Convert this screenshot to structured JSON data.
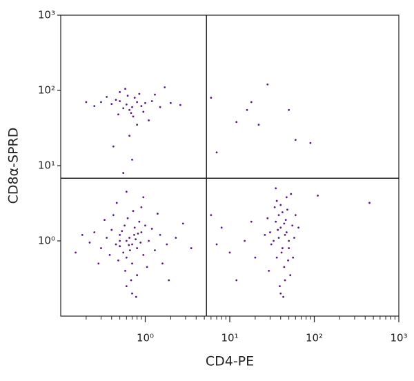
{
  "chart_data": {
    "type": "scatter",
    "xlabel": "CD4-PE",
    "ylabel": "CD8α-SPRD",
    "xscale": "log",
    "yscale": "log",
    "xlim": [
      0.1,
      1000
    ],
    "ylim": [
      0.1,
      1000
    ],
    "xticks": [
      {
        "value": 1,
        "label": "10⁰"
      },
      {
        "value": 10,
        "label": "10¹"
      },
      {
        "value": 100,
        "label": "10²"
      },
      {
        "value": 1000,
        "label": "10³"
      }
    ],
    "yticks": [
      {
        "value": 1,
        "label": "10⁰"
      },
      {
        "value": 10,
        "label": "10¹"
      },
      {
        "value": 100,
        "label": "10²"
      },
      {
        "value": 1000,
        "label": "10³"
      }
    ],
    "xminor_ticks": [
      0.2,
      0.3,
      0.4,
      0.5,
      0.6,
      0.7,
      0.8,
      0.9,
      2,
      3,
      4,
      5,
      6,
      7,
      8,
      9,
      20,
      30,
      40,
      50,
      60,
      70,
      80,
      90,
      200,
      300,
      400,
      500,
      600,
      700,
      800,
      900
    ],
    "quadrant_gates": {
      "x": 5.3,
      "y": 6.8
    },
    "color": "#5b1a8c",
    "x": [
      0.6,
      0.7,
      0.5,
      0.8,
      0.65,
      0.55,
      0.9,
      0.45,
      0.75,
      0.6,
      1.1,
      0.4,
      0.7,
      0.85,
      0.5,
      1.3,
      0.35,
      0.62,
      0.95,
      0.58,
      0.3,
      1.5,
      0.68,
      0.72,
      0.25,
      1.8,
      0.48,
      1.0,
      0.8,
      0.42,
      0.66,
      0.77,
      0.53,
      0.88,
      1.2,
      0.38,
      0.6,
      0.9,
      2.3,
      0.22,
      0.7,
      1.6,
      0.46,
      1.05,
      0.33,
      0.82,
      0.57,
      0.64,
      0.74,
      0.5,
      2.8,
      0.18,
      1.4,
      0.78,
      0.28,
      3.5,
      0.95,
      0.6,
      1.9,
      0.15,
      0.6,
      0.7,
      0.8,
      0.5,
      0.65,
      0.75,
      0.9,
      0.55,
      1.0,
      0.45,
      0.68,
      0.85,
      0.4,
      1.2,
      0.3,
      0.62,
      0.72,
      1.5,
      0.5,
      0.95,
      0.35,
      1.1,
      0.58,
      0.25,
      2.0,
      0.8,
      0.48,
      1.3,
      0.65,
      0.42,
      0.7,
      2.6,
      0.2,
      1.7,
      0.55,
      40,
      45,
      35,
      50,
      38,
      42,
      55,
      30,
      48,
      36,
      44,
      40,
      33,
      52,
      46,
      39,
      58,
      28,
      43,
      47,
      37,
      41,
      34,
      60,
      49,
      31,
      53,
      45,
      38,
      42,
      29,
      65,
      36,
      50,
      44,
      26,
      40,
      56,
      35,
      47,
      8,
      10,
      6,
      15,
      12,
      20,
      7,
      18,
      18,
      16,
      28,
      12,
      22,
      50,
      6,
      60,
      90,
      450,
      7,
      110
    ],
    "values": [
      1.0,
      0.9,
      1.2,
      0.8,
      1.1,
      0.7,
      1.3,
      0.9,
      1.5,
      0.6,
      1.0,
      1.4,
      0.5,
      1.8,
      0.85,
      0.75,
      1.1,
      2.0,
      0.65,
      0.4,
      0.8,
      1.2,
      0.3,
      2.5,
      1.3,
      0.9,
      0.55,
      1.6,
      0.35,
      2.2,
      0.75,
      1.05,
      1.35,
      0.95,
      1.45,
      0.65,
      0.25,
      2.8,
      1.1,
      0.95,
      0.2,
      0.5,
      3.2,
      0.45,
      1.9,
      1.25,
      1.6,
      0.88,
      1.2,
      1.0,
      1.7,
      1.2,
      2.3,
      0.18,
      0.5,
      0.8,
      3.8,
      4.5,
      0.3,
      0.7,
      65,
      60,
      70,
      72,
      55,
      80,
      62,
      58,
      68,
      75,
      50,
      90,
      66,
      72,
      70,
      85,
      45,
      60,
      95,
      52,
      82,
      40,
      105,
      62,
      68,
      35,
      48,
      88,
      25,
      18,
      12,
      64,
      70,
      110,
      8,
      1.5,
      1.2,
      1.8,
      1.0,
      2.2,
      0.8,
      1.6,
      1.3,
      2.6,
      0.6,
      0.45,
      3.0,
      1.0,
      0.35,
      1.9,
      0.25,
      1.1,
      2.0,
      0.18,
      3.8,
      1.4,
      0.7,
      2.8,
      2.2,
      0.55,
      0.9,
      4.2,
      0.3,
      1.1,
      2.4,
      0.4,
      1.5,
      3.4,
      0.8,
      1.7,
      1.2,
      0.2,
      0.6,
      5.0,
      1.3,
      1.5,
      0.7,
      2.2,
      1.0,
      0.3,
      0.6,
      0.9,
      1.8,
      70,
      55,
      120,
      38,
      35,
      55,
      80,
      22,
      20,
      3.2,
      15,
      4
    ]
  }
}
